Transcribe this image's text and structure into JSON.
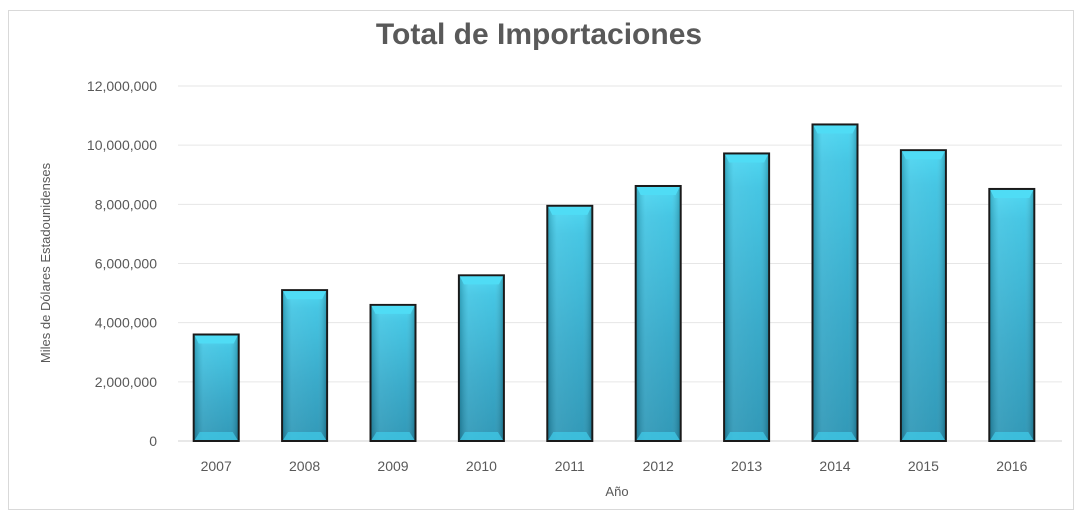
{
  "chart_data": {
    "type": "bar",
    "title": "Total de Importaciones",
    "xlabel": "Año",
    "ylabel": "Miles de Dólares Estadounidenses",
    "categories": [
      "2007",
      "2008",
      "2009",
      "2010",
      "2011",
      "2012",
      "2013",
      "2014",
      "2015",
      "2016"
    ],
    "values": [
      3600000,
      5100000,
      4600000,
      5600000,
      7950000,
      8620000,
      9720000,
      10700000,
      9830000,
      8520000
    ],
    "ylim": [
      0,
      12000000
    ],
    "yticks": [
      "0",
      "2,000,000",
      "4,000,000",
      "6,000,000",
      "8,000,000",
      "10,000,000",
      "12,000,000"
    ],
    "ytick_values": [
      0,
      2000000,
      4000000,
      6000000,
      8000000,
      10000000,
      12000000
    ],
    "grid": true,
    "legend": "none",
    "bar_color": "#2a9fc0",
    "bar_highlight": "#4fdcf5",
    "bar_edge": "#1a1a1a"
  }
}
